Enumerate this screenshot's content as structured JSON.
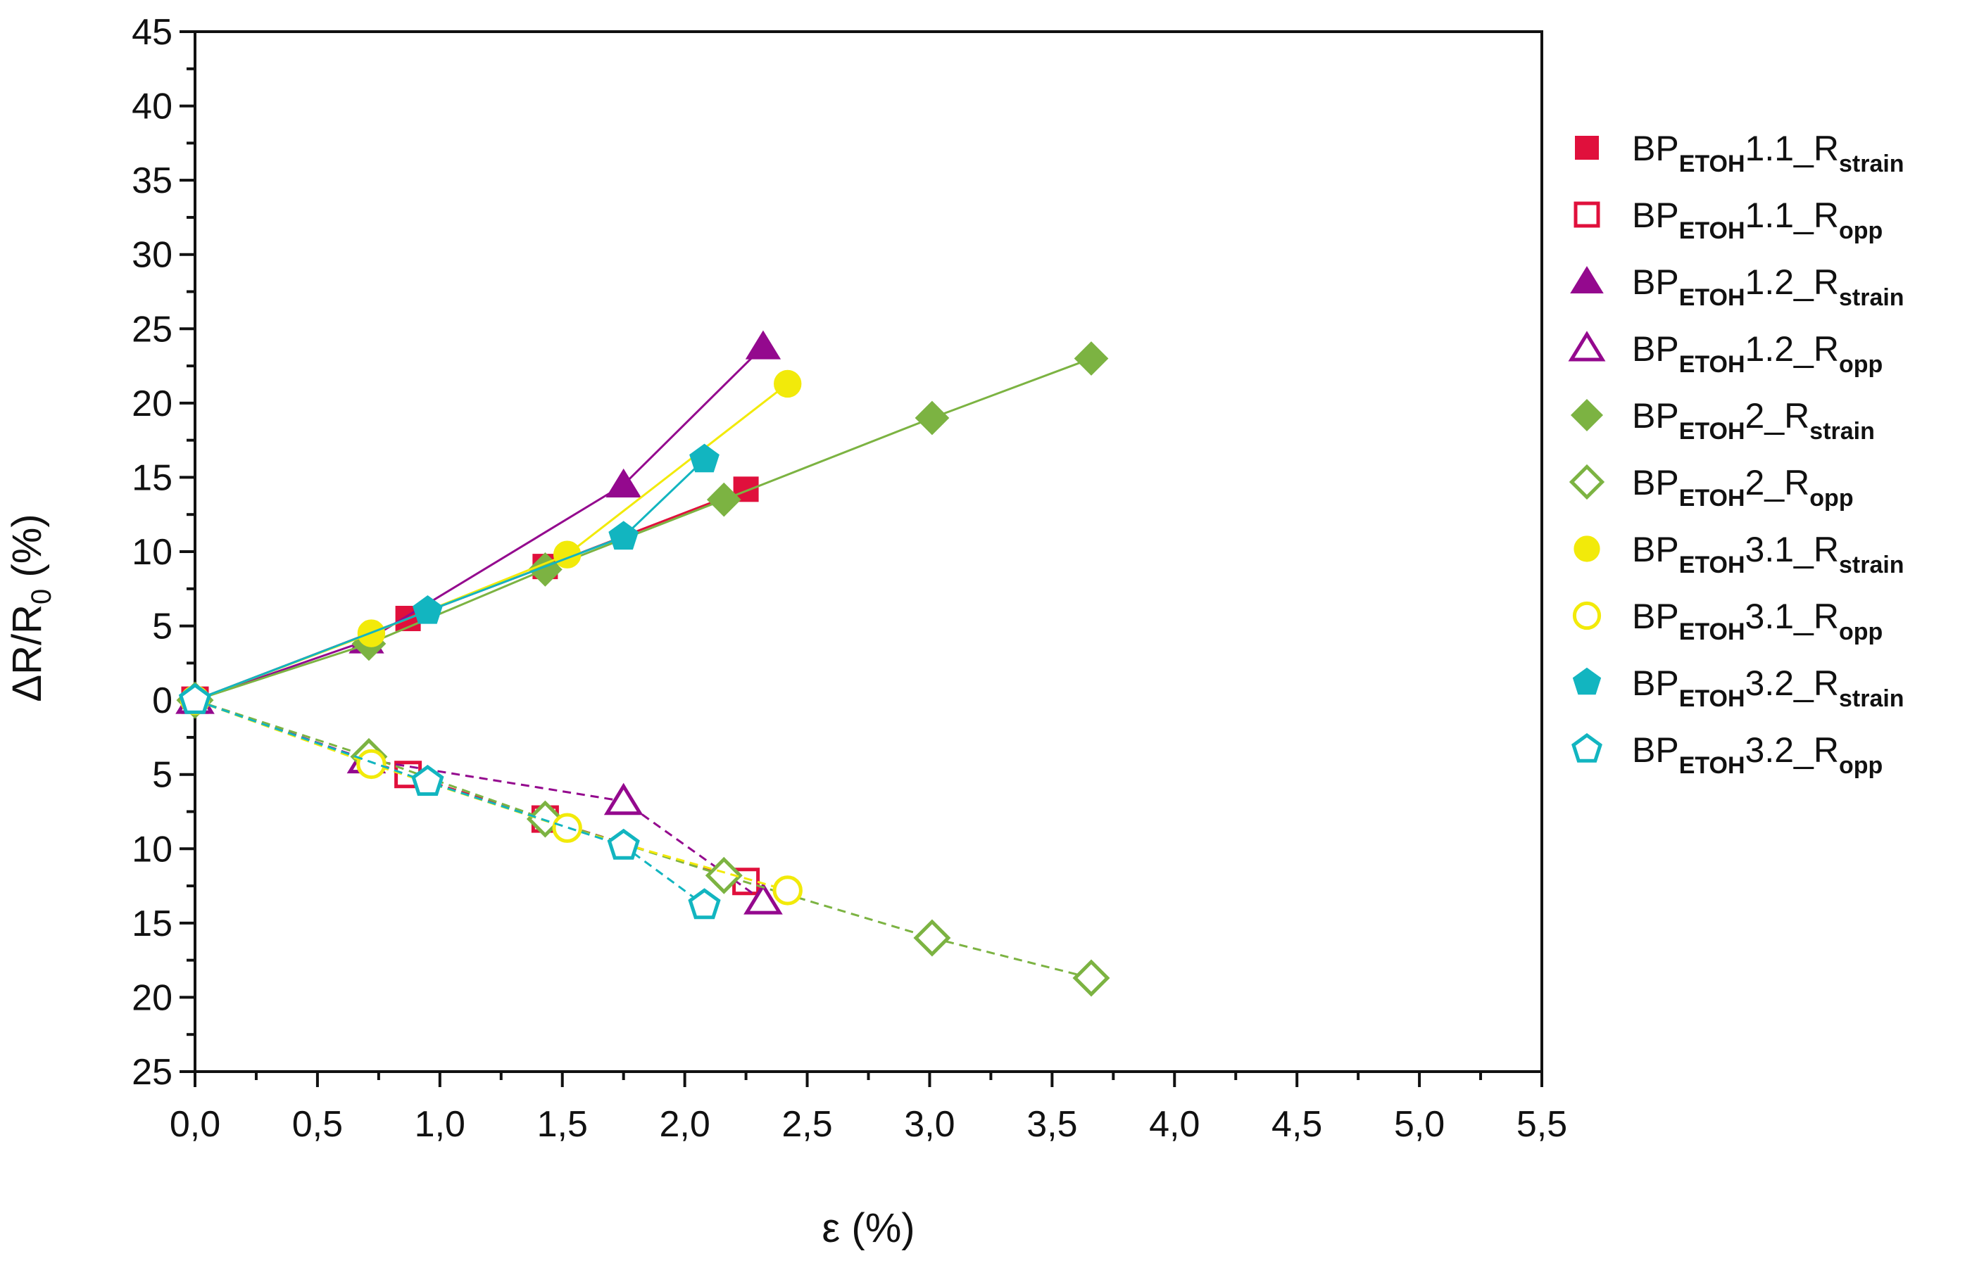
{
  "chart_data": {
    "type": "scatter",
    "xlabel": "ε (%)",
    "ylabel": "ΔR/R",
    "ylabel_sub": "0",
    "ylabel_suffix": " (%)",
    "xlim": [
      0,
      5.5
    ],
    "ylim": [
      -25,
      45
    ],
    "x_ticks": [
      "0,0",
      "0,5",
      "1,0",
      "1,5",
      "2,0",
      "2,5",
      "3,0",
      "3,5",
      "4,0",
      "4,5",
      "5,0",
      "5,5"
    ],
    "y_ticks": [
      {
        "value": 45,
        "label": "45"
      },
      {
        "value": 40,
        "label": "40"
      },
      {
        "value": 35,
        "label": "35"
      },
      {
        "value": 30,
        "label": "30"
      },
      {
        "value": 25,
        "label": "25"
      },
      {
        "value": 20,
        "label": "20"
      },
      {
        "value": 15,
        "label": "15"
      },
      {
        "value": 10,
        "label": "10"
      },
      {
        "value": 5,
        "label": "5"
      },
      {
        "value": 0,
        "label": "0"
      },
      {
        "value": -5,
        "label": "5"
      },
      {
        "value": -10,
        "label": "10"
      },
      {
        "value": -15,
        "label": "15"
      },
      {
        "value": -20,
        "label": "20"
      },
      {
        "value": -25,
        "label": "25"
      }
    ],
    "grid": false,
    "legend_position": "right",
    "series": [
      {
        "name": "BP_ETOH1.1_R_strain",
        "prefix": "BP",
        "sub1": "ETOH",
        "mid": "1.1_R",
        "sub2": "strain",
        "color": "#e0103c",
        "marker": "square",
        "filled": true,
        "dashed": false,
        "x": [
          0,
          0.87,
          1.43,
          2.25
        ],
        "y": [
          0,
          5.5,
          9,
          14.2
        ]
      },
      {
        "name": "BP_ETOH1.1_R_opp",
        "prefix": "BP",
        "sub1": "ETOH",
        "mid": "1.1_R",
        "sub2": "opp",
        "color": "#e0103c",
        "marker": "square",
        "filled": false,
        "dashed": true,
        "x": [
          0,
          0.87,
          1.43,
          2.25
        ],
        "y": [
          0,
          -5,
          -8,
          -12.2
        ]
      },
      {
        "name": "BP_ETOH1.2_R_strain",
        "prefix": "BP",
        "sub1": "ETOH",
        "mid": "1.2_R",
        "sub2": "strain",
        "color": "#94098e",
        "marker": "triangle",
        "filled": true,
        "dashed": false,
        "x": [
          0,
          0.7,
          1.75,
          2.32
        ],
        "y": [
          0,
          4,
          14.5,
          23.8
        ]
      },
      {
        "name": "BP_ETOH1.2_R_opp",
        "prefix": "BP",
        "sub1": "ETOH",
        "mid": "1.2_R",
        "sub2": "opp",
        "color": "#94098e",
        "marker": "triangle",
        "filled": false,
        "dashed": true,
        "x": [
          0,
          0.7,
          1.75,
          2.32
        ],
        "y": [
          0,
          -4,
          -6.8,
          -13.5
        ]
      },
      {
        "name": "BP_ETOH2_R_strain",
        "prefix": "BP",
        "sub1": "ETOH",
        "mid": "2_R",
        "sub2": "strain",
        "color": "#7cb342",
        "marker": "diamond",
        "filled": true,
        "dashed": false,
        "x": [
          0,
          0.71,
          1.43,
          2.16,
          3.01,
          3.66
        ],
        "y": [
          0,
          3.8,
          8.8,
          13.5,
          19,
          23
        ]
      },
      {
        "name": "BP_ETOH2_R_opp",
        "prefix": "BP",
        "sub1": "ETOH",
        "mid": "2_R",
        "sub2": "opp",
        "color": "#7cb342",
        "marker": "diamond",
        "filled": false,
        "dashed": true,
        "x": [
          0,
          0.71,
          1.43,
          2.16,
          3.01,
          3.66
        ],
        "y": [
          0,
          -3.8,
          -8,
          -11.8,
          -16,
          -18.7
        ]
      },
      {
        "name": "BP_ETOH3.1_R_strain",
        "prefix": "BP",
        "sub1": "ETOH",
        "mid": "3.1_R",
        "sub2": "strain",
        "color": "#f2ea0a",
        "marker": "circle",
        "filled": true,
        "dashed": false,
        "x": [
          0,
          0.72,
          1.52,
          2.42
        ],
        "y": [
          0,
          4.5,
          9.8,
          21.3
        ]
      },
      {
        "name": "BP_ETOH3.1_R_opp",
        "prefix": "BP",
        "sub1": "ETOH",
        "mid": "3.1_R",
        "sub2": "opp",
        "color": "#f2ea0a",
        "marker": "circle",
        "filled": false,
        "dashed": true,
        "x": [
          0,
          0.72,
          1.52,
          2.42
        ],
        "y": [
          0,
          -4.3,
          -8.6,
          -12.8
        ]
      },
      {
        "name": "BP_ETOH3.2_R_strain",
        "prefix": "BP",
        "sub1": "ETOH",
        "mid": "3.2_R",
        "sub2": "strain",
        "color": "#12b5c0",
        "marker": "pentagon",
        "filled": true,
        "dashed": false,
        "x": [
          0,
          0.95,
          1.75,
          2.08
        ],
        "y": [
          0,
          6,
          11,
          16.2
        ]
      },
      {
        "name": "BP_ETOH3.2_R_opp",
        "prefix": "BP",
        "sub1": "ETOH",
        "mid": "3.2_R",
        "sub2": "opp",
        "color": "#12b5c0",
        "marker": "pentagon",
        "filled": false,
        "dashed": true,
        "x": [
          0,
          0.95,
          1.75,
          2.08
        ],
        "y": [
          0,
          -5.5,
          -9.8,
          -13.8
        ]
      }
    ]
  }
}
